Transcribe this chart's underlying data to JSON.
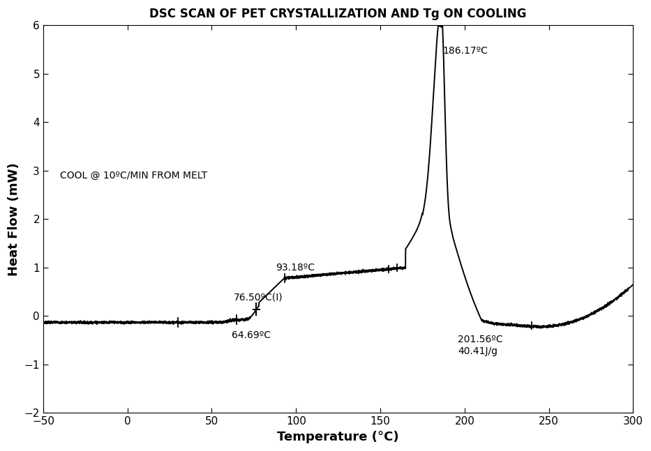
{
  "title": "DSC SCAN OF PET CRYSTALLIZATION AND Tg ON COOLING",
  "xlabel": "Temperature (°C)",
  "ylabel": "Heat Flow (mW)",
  "xlim": [
    -50,
    300
  ],
  "ylim": [
    -2,
    6
  ],
  "xticks": [
    -50,
    0,
    50,
    100,
    150,
    200,
    250,
    300
  ],
  "yticks": [
    -2,
    -1,
    0,
    1,
    2,
    3,
    4,
    5,
    6
  ],
  "ann_186": "186.17ºC",
  "ann_93": "93.18ºC",
  "ann_76": "76.50ºC(I)",
  "ann_64": "64.69ºC",
  "ann_201": "201.56ºC\n40.41J/g",
  "ann_cool": "COOL @ 10ºC/MIN FROM MELT",
  "line_color": "#000000",
  "background_color": "#ffffff",
  "title_fontsize": 12,
  "axis_label_fontsize": 13,
  "tick_fontsize": 11,
  "ann_fontsize": 10
}
